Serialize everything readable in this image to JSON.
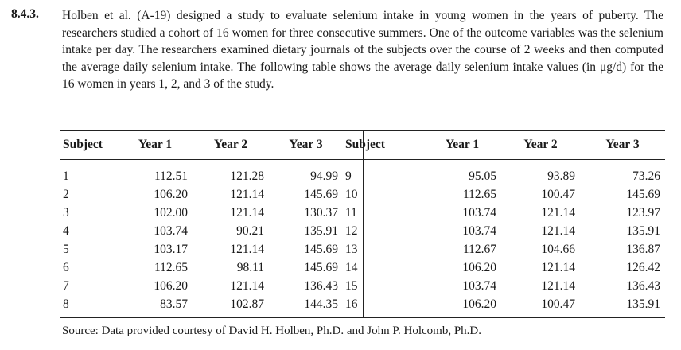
{
  "exercise": {
    "number": "8.4.3.",
    "text": "Holben et al. (A-19) designed a study to evaluate selenium intake in young women in the years of puberty. The researchers studied a cohort of 16 women for three consecutive summers. One of the outcome variables was the selenium intake per day. The researchers examined dietary journals of the subjects over the course of 2 weeks and then computed the average daily selenium intake. The following table shows the average daily selenium intake values (in μg/d) for the 16 women in years 1, 2, and 3 of the study."
  },
  "table": {
    "headers": [
      "Subject",
      "Year 1",
      "Year 2",
      "Year 3",
      "Subject",
      "Year 1",
      "Year 2",
      "Year 3"
    ],
    "rows": [
      [
        "1",
        "112.51",
        "121.28",
        "94.99",
        "9",
        "95.05",
        "93.89",
        "73.26"
      ],
      [
        "2",
        "106.20",
        "121.14",
        "145.69",
        "10",
        "112.65",
        "100.47",
        "145.69"
      ],
      [
        "3",
        "102.00",
        "121.14",
        "130.37",
        "11",
        "103.74",
        "121.14",
        "123.97"
      ],
      [
        "4",
        "103.74",
        "90.21",
        "135.91",
        "12",
        "103.74",
        "121.14",
        "135.91"
      ],
      [
        "5",
        "103.17",
        "121.14",
        "145.69",
        "13",
        "112.67",
        "104.66",
        "136.87"
      ],
      [
        "6",
        "112.65",
        "98.11",
        "145.69",
        "14",
        "106.20",
        "121.14",
        "126.42"
      ],
      [
        "7",
        "106.20",
        "121.14",
        "136.43",
        "15",
        "103.74",
        "121.14",
        "136.43"
      ],
      [
        "8",
        "83.57",
        "102.87",
        "144.35",
        "16",
        "106.20",
        "100.47",
        "135.91"
      ]
    ]
  },
  "source": "Source: Data provided courtesy of David H. Holben, Ph.D. and John P. Holcomb, Ph.D."
}
